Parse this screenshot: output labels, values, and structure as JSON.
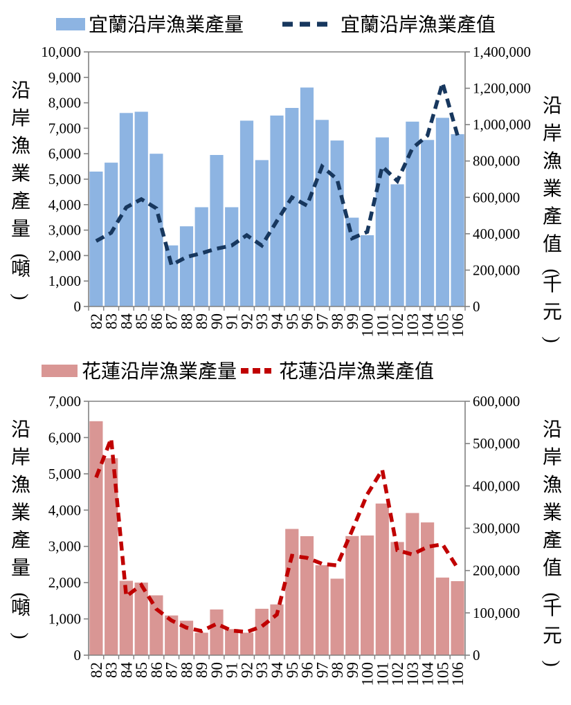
{
  "page_background": "#ffffff",
  "axis_color": "#808080",
  "chart_data": [
    {
      "type": "bar+line",
      "title": "",
      "legend_position": "top",
      "categories": [
        "82",
        "83",
        "84",
        "85",
        "86",
        "87",
        "88",
        "89",
        "90",
        "91",
        "92",
        "93",
        "94",
        "95",
        "96",
        "97",
        "98",
        "99",
        "100",
        "101",
        "102",
        "103",
        "104",
        "105",
        "106"
      ],
      "series": [
        {
          "name": "宜蘭沿岸漁業產量",
          "type": "bar",
          "axis": "left",
          "color": "#8DB4E2",
          "values": [
            5300,
            5650,
            7600,
            7650,
            6000,
            2400,
            3150,
            3900,
            5950,
            3900,
            7300,
            5750,
            7500,
            7800,
            8600,
            7330,
            6520,
            3490,
            2800,
            6640,
            4800,
            7260,
            6540,
            7410,
            6770
          ]
        },
        {
          "name": "宜蘭沿岸漁業產值",
          "type": "line",
          "axis": "right",
          "color": "#17375E",
          "dashed": true,
          "values": [
            360000,
            405000,
            545000,
            590000,
            540000,
            228000,
            272000,
            293000,
            318000,
            335000,
            392000,
            335000,
            470000,
            600000,
            555000,
            770000,
            700000,
            375000,
            410000,
            770000,
            690000,
            870000,
            940000,
            1230000,
            940000
          ]
        }
      ],
      "left_axis": {
        "title": "沿岸漁業產量(噸)",
        "min": 0,
        "max": 10000,
        "step": 1000,
        "tick_labels": [
          "10,000",
          "9,000",
          "8,000",
          "7,000",
          "6,000",
          "5,000",
          "4,000",
          "3,000",
          "2,000",
          "1,000",
          "0"
        ]
      },
      "right_axis": {
        "title": "沿岸漁業產值(千元)",
        "min": 0,
        "max": 1400000,
        "step": 200000,
        "tick_labels": [
          "1,400,000",
          "1,200,000",
          "1,000,000",
          "800,000",
          "600,000",
          "400,000",
          "200,000",
          "0"
        ]
      },
      "grid": false
    },
    {
      "type": "bar+line",
      "title": "",
      "legend_position": "top",
      "categories": [
        "82",
        "83",
        "84",
        "85",
        "86",
        "87",
        "88",
        "89",
        "90",
        "91",
        "92",
        "93",
        "94",
        "95",
        "96",
        "97",
        "98",
        "99",
        "100",
        "101",
        "102",
        "103",
        "104",
        "105",
        "106"
      ],
      "series": [
        {
          "name": "花蓮沿岸漁業產量",
          "type": "bar",
          "axis": "left",
          "color": "#D99694",
          "values": [
            6450,
            5430,
            2050,
            2000,
            1650,
            1095,
            950,
            620,
            1260,
            720,
            620,
            1280,
            1400,
            3480,
            3280,
            2480,
            2110,
            3285,
            3300,
            4180,
            3120,
            3920,
            3660,
            2140,
            2040
          ]
        },
        {
          "name": "花蓮沿岸漁業產值",
          "type": "line",
          "axis": "right",
          "color": "#C00000",
          "dashed": true,
          "values": [
            420000,
            512000,
            139000,
            166000,
            109000,
            82000,
            65000,
            57000,
            74000,
            58000,
            55000,
            68000,
            96000,
            235000,
            230000,
            216000,
            212000,
            295000,
            380000,
            438000,
            248000,
            238000,
            256000,
            262000,
            206000
          ]
        }
      ],
      "left_axis": {
        "title": "沿岸漁業產量(噸)",
        "min": 0,
        "max": 7000,
        "step": 1000,
        "tick_labels": [
          "7,000",
          "6,000",
          "5,000",
          "4,000",
          "3,000",
          "2,000",
          "1,000",
          "0"
        ]
      },
      "right_axis": {
        "title": "沿岸漁業產值(千元)",
        "min": 0,
        "max": 600000,
        "step": 100000,
        "tick_labels": [
          "600,000",
          "500,000",
          "400,000",
          "300,000",
          "200,000",
          "100,000",
          "0"
        ]
      },
      "grid": false
    }
  ]
}
